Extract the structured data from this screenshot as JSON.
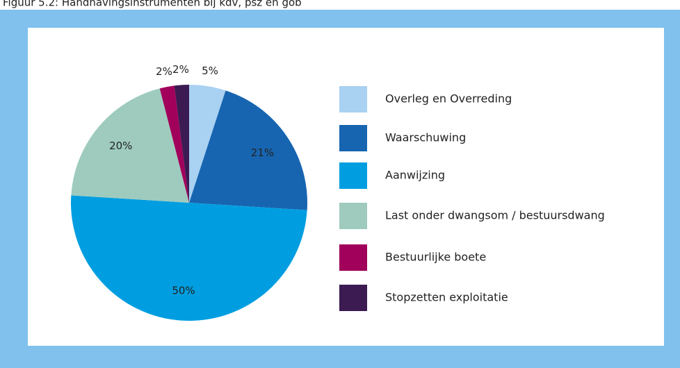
{
  "chart_data": {
    "type": "pie",
    "title": "Figuur 5.2: Handhavingsinstrumenten bij kdv, psz en gob",
    "categories": [
      "Overleg en Overreding",
      "Waarschuwing",
      "Aanwijzing",
      "Last onder dwangsom / bestuursdwang",
      "Bestuurlijke boete",
      "Stopzetten exploitatie"
    ],
    "values": [
      5,
      21,
      50,
      20,
      2,
      2
    ],
    "value_labels": [
      "5%",
      "21%",
      "50%",
      "20%",
      "2%",
      "2%"
    ],
    "colors": [
      "#a9d1f2",
      "#1765b0",
      "#009ee0",
      "#9ecbbe",
      "#a1005b",
      "#3b1b52"
    ],
    "legend": "right"
  }
}
